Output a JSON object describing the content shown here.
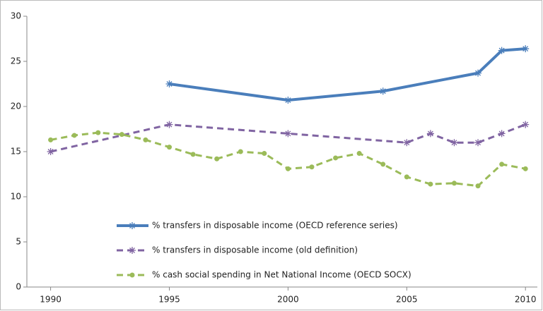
{
  "chart_data": {
    "type": "line",
    "xlim": [
      1989,
      2010.5
    ],
    "xticks": [
      1990,
      1995,
      2000,
      2005,
      2010
    ],
    "ylim": [
      0,
      30
    ],
    "yticks": [
      0,
      5,
      10,
      15,
      20,
      25,
      30
    ],
    "legend": "lower-center",
    "series": [
      {
        "name": "% transfers in disposable income (OECD reference series)",
        "color": "#4a7ebb",
        "dash": "solid",
        "marker": "star",
        "x": [
          1995,
          2000,
          2004,
          2008,
          2009,
          2010
        ],
        "values": [
          22.5,
          20.7,
          21.7,
          23.7,
          26.2,
          26.4
        ]
      },
      {
        "name": "% transfers in disposable income (old definition)",
        "color": "#8064a2",
        "dash": "dashed",
        "marker": "star",
        "x": [
          1990,
          1995,
          2000,
          2005,
          2006,
          2007,
          2008,
          2009,
          2010
        ],
        "values": [
          15,
          18,
          17,
          16,
          17,
          16,
          16,
          17,
          18
        ]
      },
      {
        "name": "% cash social spending in Net National Income (OECD SOCX)",
        "color": "#9bbb59",
        "dash": "dashed",
        "marker": "circle",
        "x": [
          1990,
          1991,
          1992,
          1993,
          1994,
          1995,
          1996,
          1997,
          1998,
          1999,
          2000,
          2001,
          2002,
          2003,
          2004,
          2005,
          2006,
          2007,
          2008,
          2009,
          2010
        ],
        "values": [
          16.3,
          16.8,
          17.1,
          16.9,
          16.3,
          15.5,
          14.7,
          14.2,
          15.0,
          14.8,
          13.1,
          13.3,
          14.3,
          14.8,
          13.6,
          12.2,
          11.4,
          11.5,
          11.2,
          13.6,
          13.1
        ]
      }
    ]
  }
}
